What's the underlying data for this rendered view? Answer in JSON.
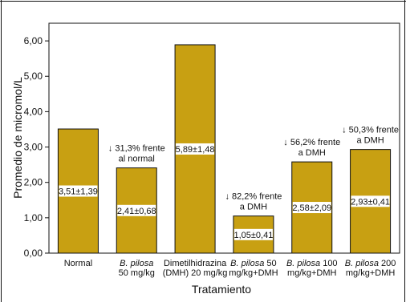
{
  "chart_data": {
    "type": "bar",
    "xlabel": "Tratamiento",
    "ylabel": "Promedio de micromol/L",
    "ylim": [
      0,
      6.5
    ],
    "yticks": [
      "0,00",
      "1,00",
      "2,00",
      "3,00",
      "4,00",
      "5,00",
      "6,00"
    ],
    "ytick_values": [
      0,
      1,
      2,
      3,
      4,
      5,
      6
    ],
    "grid": false,
    "bar_color": "#c8a012",
    "bars": [
      {
        "cat_lines": [
          "Normal"
        ],
        "italic_first_word": false,
        "value": 3.51,
        "label": "3,51±1,39",
        "annotation": []
      },
      {
        "cat_lines": [
          "B. pilosa",
          "50 mg/kg"
        ],
        "italic_first_word": true,
        "value": 2.41,
        "label": "2,41±0,68",
        "annotation": [
          "↓ 31,3% frente",
          "al normal"
        ]
      },
      {
        "cat_lines": [
          "Dimetilhidrazina",
          "(DMH) 20 mg/kg"
        ],
        "italic_first_word": false,
        "value": 5.89,
        "label": "5,89±1,48",
        "annotation": []
      },
      {
        "cat_lines": [
          "B. pilosa 50",
          "mg/kg+DMH"
        ],
        "italic_first_word": true,
        "value": 1.05,
        "label": "1,05±0,41",
        "annotation": [
          "↓ 82,2% frente",
          "a DMH"
        ]
      },
      {
        "cat_lines": [
          "B. pilosa 100",
          "mg/kg+DMH"
        ],
        "italic_first_word": true,
        "value": 2.58,
        "label": "2,58±2,09",
        "annotation": [
          "↓ 56,2% frente",
          "a DMH"
        ]
      },
      {
        "cat_lines": [
          "B. pilosa 200",
          "mg/kg+DMH"
        ],
        "italic_first_word": true,
        "value": 2.93,
        "label": "2,93±0,41",
        "annotation": [
          "↓ 50,3% frente",
          "a DMH"
        ]
      }
    ]
  }
}
